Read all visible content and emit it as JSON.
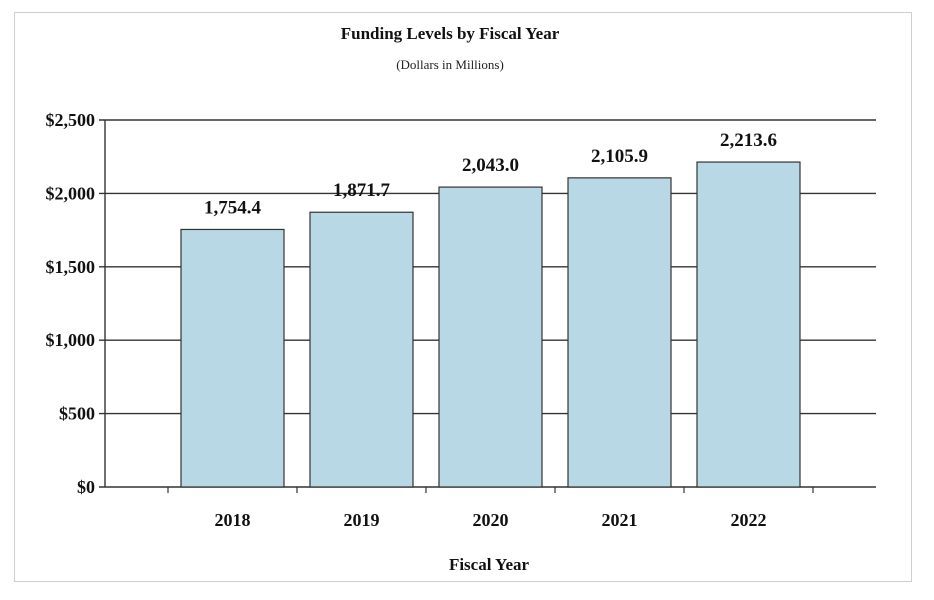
{
  "chart_data": {
    "type": "bar",
    "title": "Funding Levels by Fiscal Year",
    "subtitle": "(Dollars in Millions)",
    "xlabel": "Fiscal Year",
    "ylabel": "",
    "categories": [
      "2018",
      "2019",
      "2020",
      "2021",
      "2022"
    ],
    "values": [
      1754.4,
      1871.7,
      2043.0,
      2105.9,
      2213.6
    ],
    "data_labels": [
      "1,754.4",
      "1,871.7",
      "2,043.0",
      "2,105.9",
      "2,213.6"
    ],
    "ylim": [
      0,
      2500
    ],
    "yticks": [
      0,
      500,
      1000,
      1500,
      2000,
      2500
    ],
    "ytick_labels": [
      "$0",
      "$500",
      "$1,000",
      "$1,500",
      "$2,000",
      "$2,500"
    ],
    "grid": "horizontal",
    "legend": "none",
    "bar_color": "#b9d8e6",
    "bar_edge_color": "#333333"
  }
}
